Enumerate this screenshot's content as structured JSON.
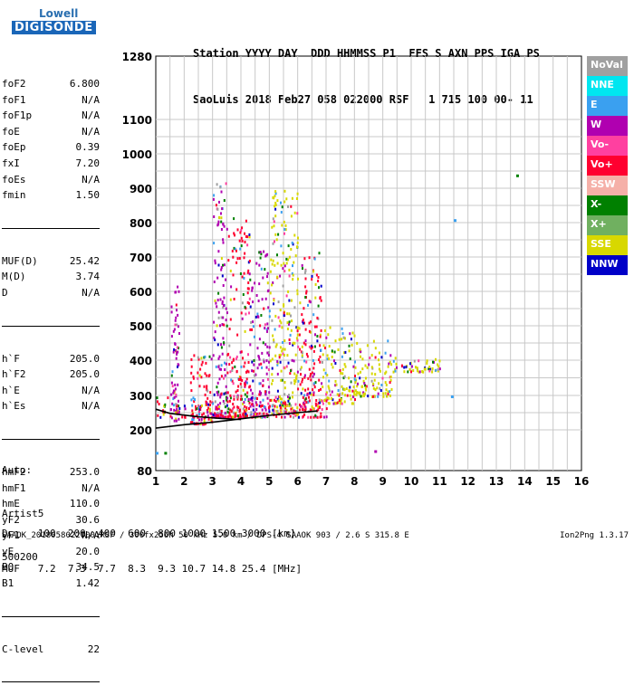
{
  "logo": {
    "line1": "Lowell",
    "line2": "DIGISONDE"
  },
  "header": {
    "row1": "Station YYYY DAY  DDD HHMMSS P1  FFS S AXN PPS IGA PS",
    "row2": "SaoLuis 2018 Feb27 058 022000 RSF   1 715 100 00- 11"
  },
  "params_group1": [
    {
      "k": "foF2",
      "v": "6.800"
    },
    {
      "k": "foF1",
      "v": "N/A"
    },
    {
      "k": "foF1p",
      "v": "N/A"
    },
    {
      "k": "foE",
      "v": "N/A"
    },
    {
      "k": "foEp",
      "v": "0.39"
    },
    {
      "k": "fxI",
      "v": "7.20"
    },
    {
      "k": "foEs",
      "v": "N/A"
    },
    {
      "k": "fmin",
      "v": "1.50"
    }
  ],
  "params_group2": [
    {
      "k": "MUF(D)",
      "v": "25.42"
    },
    {
      "k": "M(D)",
      "v": "3.74"
    },
    {
      "k": "D",
      "v": "N/A"
    }
  ],
  "params_group3": [
    {
      "k": "h`F",
      "v": "205.0"
    },
    {
      "k": "h`F2",
      "v": "205.0"
    },
    {
      "k": "h`E",
      "v": "N/A"
    },
    {
      "k": "h`Es",
      "v": "N/A"
    }
  ],
  "params_group4": [
    {
      "k": "hmF2",
      "v": "253.0"
    },
    {
      "k": "hmF1",
      "v": "N/A"
    },
    {
      "k": "hmE",
      "v": "110.0"
    },
    {
      "k": "yF2",
      "v": "30.6"
    },
    {
      "k": "yF1",
      "v": "N/A"
    },
    {
      "k": "yE",
      "v": "20.0"
    },
    {
      "k": "B0",
      "v": "34.5"
    },
    {
      "k": "B1",
      "v": "1.42"
    }
  ],
  "params_group5": [
    {
      "k": "C-level",
      "v": "22"
    }
  ],
  "auto": {
    "line1": "Auto:",
    "line2": "Artist5",
    "line3": "500200"
  },
  "legend": [
    {
      "label": "NoVal",
      "color": "#a0a0a0"
    },
    {
      "label": "NNE",
      "color": "#00e6f0"
    },
    {
      "label": "E",
      "color": "#3aa0f0"
    },
    {
      "label": "W",
      "color": "#b000b0"
    },
    {
      "label": "Vo-",
      "color": "#ff40a0"
    },
    {
      "label": "Vo+",
      "color": "#ff0030"
    },
    {
      "label": "SSW",
      "color": "#f5b0a8"
    },
    {
      "label": "X-",
      "color": "#008000"
    },
    {
      "label": "X+",
      "color": "#70b060"
    },
    {
      "label": "SSE",
      "color": "#d8d800"
    },
    {
      "label": "NNW",
      "color": "#0000c8"
    }
  ],
  "footer": {
    "row1": "D     100  200  400  600  800 1000 1500 3000 [km]",
    "row2": "MUF   7.2  7.3  7.7  8.3  9.3 10.7 14.8 25.4 [MHz]",
    "file": "SAAOK_2018058022000.RSF / 300fx256h 50 kHz 5.0 km / DPS-4 SAAOK 903 / 2.6 S 315.8 E",
    "version": "Ion2Png 1.3.17"
  },
  "chart_data": {
    "type": "scatter",
    "title": "",
    "xlabel": "",
    "ylabel": "",
    "x_unit": "MHz",
    "y_unit": "km",
    "xlim": [
      1,
      16
    ],
    "x_ticks": [
      1,
      2,
      3,
      4,
      5,
      6,
      7,
      8,
      9,
      10,
      11,
      12,
      13,
      14,
      15,
      16
    ],
    "y_ticks": [
      80,
      200,
      300,
      400,
      500,
      600,
      700,
      800,
      900,
      1000,
      1100,
      1280
    ],
    "y_scale": "nonuniform (virtual height, compressed 80-200 and 1100-1280)",
    "grid": true,
    "traces": [
      {
        "name": "trace-lower",
        "x": [
          1.0,
          2.0,
          3.0,
          4.0,
          5.0,
          6.0,
          6.7
        ],
        "y": [
          205,
          215,
          222,
          232,
          242,
          250,
          255
        ]
      },
      {
        "name": "trace-upper",
        "x": [
          1.0,
          1.5,
          2.0,
          2.5,
          3.0,
          3.5,
          4.0
        ],
        "y": [
          260,
          248,
          243,
          238,
          235,
          232,
          230
        ]
      }
    ],
    "echo_regions": [
      {
        "x": [
          1.5,
          1.8
        ],
        "y": [
          230,
          620
        ],
        "color": "#b000b0"
      },
      {
        "x": [
          2.2,
          3.0
        ],
        "y": [
          220,
          420
        ],
        "color": "#ff0030"
      },
      {
        "x": [
          3.0,
          3.5
        ],
        "y": [
          240,
          920
        ],
        "color": "#b000b0"
      },
      {
        "x": [
          3.5,
          4.3
        ],
        "y": [
          240,
          820
        ],
        "color": "#ff0030"
      },
      {
        "x": [
          4.3,
          5.0
        ],
        "y": [
          240,
          720
        ],
        "color": "#b000b0"
      },
      {
        "x": [
          5.0,
          6.0
        ],
        "y": [
          250,
          900
        ],
        "color": "#d8d800"
      },
      {
        "x": [
          6.0,
          6.8
        ],
        "y": [
          260,
          720
        ],
        "color": "#ff0030"
      },
      {
        "x": [
          6.8,
          8.0
        ],
        "y": [
          280,
          500
        ],
        "color": "#d8d800"
      },
      {
        "x": [
          8.0,
          9.3
        ],
        "y": [
          300,
          460
        ],
        "color": "#d8d800"
      },
      {
        "x": [
          9.3,
          11.0
        ],
        "y": [
          370,
          410
        ],
        "color": "#d8d800"
      },
      {
        "x": [
          1.0,
          7.0
        ],
        "y": [
          240,
          300
        ],
        "color": "#ff0030"
      }
    ],
    "isolated_points": [
      {
        "x": 13.7,
        "y": 940,
        "color": "#008000"
      },
      {
        "x": 11.5,
        "y": 810,
        "color": "#3aa0f0"
      },
      {
        "x": 11.4,
        "y": 300,
        "color": "#3aa0f0"
      },
      {
        "x": 8.7,
        "y": 140,
        "color": "#b000b0"
      },
      {
        "x": 1.0,
        "y": 135,
        "color": "#3aa0f0"
      },
      {
        "x": 1.3,
        "y": 135,
        "color": "#008000"
      }
    ]
  }
}
